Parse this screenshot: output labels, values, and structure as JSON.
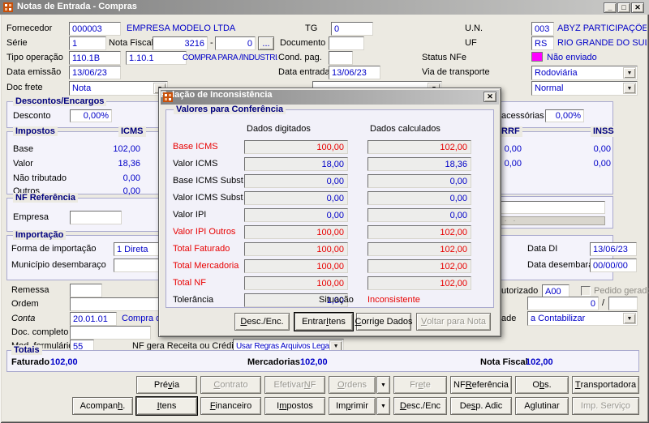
{
  "colors": {
    "value_blue": "#0000C8",
    "alert_red": "#E80000",
    "nfe_status_magenta": "#FF00FF",
    "group_caption_navy": "#00007E"
  },
  "icons": {
    "minimize": "_",
    "maximize": "□",
    "close": "✕",
    "browse": "...",
    "dropdown": "▼",
    "dots": "· · · · · · · · · · · · · · · · · · · ·"
  },
  "window": {
    "title": "Notas de Entrada - Compras"
  },
  "top": {
    "fornecedor_label": "Fornecedor",
    "fornecedor_code": "000003",
    "fornecedor_name": "EMPRESA MODELO LTDA",
    "tg_label": "TG",
    "tg_value": "0",
    "un_label": "U.N.",
    "un_code": "003",
    "un_name": "ABYZ PARTICIPAÇÕES E",
    "serie_label": "Série",
    "serie_value": "1",
    "nota_fiscal_label": "Nota Fiscal",
    "nota_fiscal_value": "3216",
    "dash": "-",
    "nota_fiscal_sub": "0",
    "documento_label": "Documento",
    "documento_value": "",
    "uf_label": "UF",
    "uf_code": "RS",
    "uf_name": "RIO GRANDE DO SUL",
    "tipo_operacao_label": "Tipo operação",
    "tipo_operacao_code1": "110.1B",
    "tipo_operacao_code2": "1.10.1",
    "tipo_operacao_desc": "COMPRA PARA /INDUSTRIALIZACAC",
    "cond_pag_label": "Cond. pag.",
    "cond_pag_value": "",
    "status_nfe_label": "Status NFe",
    "status_nfe_value": "Não enviado",
    "data_emissao_label": "Data emissão",
    "data_emissao_value": "13/06/23",
    "data_entrada_label": "Data entrada",
    "data_entrada_value": "13/06/23",
    "via_transporte_label": "Via de transporte",
    "via_transporte_value": "Rodoviária",
    "doc_frete_label": "Doc frete",
    "doc_frete_value": "Nota",
    "frete_tipo_value": "Normal"
  },
  "descontos": {
    "caption": "Descontos/Encargos",
    "desconto_label": "Desconto",
    "desconto_value": "0,00%",
    "acessorias_label_fragment": "acessórias",
    "acessorias_value": "0,00%"
  },
  "impostos": {
    "caption": "Impostos",
    "col_icms": "ICMS",
    "col_irrf": "IRRF",
    "col_inss": "INSS",
    "row_labels": [
      "Base",
      "Valor",
      "Não tributado",
      "Outros"
    ],
    "icms_values": [
      "102,00",
      "18,36",
      "0,00",
      "0,00"
    ],
    "irrf_values": [
      "0,00",
      "0,00"
    ],
    "inss_values": [
      "0,00",
      "0,00"
    ]
  },
  "nf_ref": {
    "caption": "NF Referência",
    "empresa_label": "Empresa",
    "empresa_value": ""
  },
  "importacao": {
    "caption": "Importação",
    "forma_label": "Forma de importação",
    "forma_value": "1 Direta",
    "municipio_label": "Município desembaraço",
    "municipio_value": "",
    "data_di_label": "Data DI",
    "data_di_value": "13/06/23",
    "data_desembaraco_label": "Data desembaraço",
    "data_desembaraco_value": "00/00/00"
  },
  "misc": {
    "remessa_label": "Remessa",
    "remessa_value": "",
    "autorizado_label_fragment": "utorizado",
    "autorizado_value": "A00",
    "pedido_gerado_label": "Pedido gerado",
    "ordem_label": "Ordem",
    "ordem_value": "",
    "ordem_num_value": "0",
    "slash": "/",
    "ordem_num2_value": "",
    "conta_label": "Conta",
    "conta_value": "20.01.01",
    "conta_desc": "Compra de M",
    "contab_label_fragment": "ade",
    "contab_value": "a Contabilizar",
    "doc_completo_label": "Doc. completo",
    "doc_completo_value": "",
    "mod_formulario_label": "Mod. formulário",
    "mod_formulario_value": "55",
    "nf_gera_label": "NF gera Receita ou Crédito",
    "nf_gera_value": "Usar Regras Arquivos Legais"
  },
  "totais": {
    "caption": "Totais",
    "faturado_label": "Faturado",
    "faturado_value": "102,00",
    "mercadorias_label": "Mercadorias",
    "mercadorias_value": "102,00",
    "nota_fiscal_label": "Nota Fiscal",
    "nota_fiscal_value": "102,00"
  },
  "actions_row1": [
    {
      "label": "Prévia",
      "mnemonic": "v"
    },
    {
      "label": "Contrato",
      "mnemonic": "C",
      "disabled": true
    },
    {
      "label": "Efetivar NF",
      "mnemonic": "N",
      "disabled": true
    },
    {
      "label": "Ordens",
      "mnemonic": "O",
      "disabled": true
    },
    {
      "label": "Frete",
      "mnemonic": "e",
      "disabled": true
    },
    {
      "label": "NF Referência",
      "mnemonic": "R"
    },
    {
      "label": "Obs.",
      "mnemonic": "b"
    },
    {
      "label": "Transportadora",
      "mnemonic": "T"
    }
  ],
  "actions_row2": [
    {
      "label": "Acompanh.",
      "mnemonic": "h"
    },
    {
      "label": "Itens",
      "mnemonic": "I",
      "focused": true
    },
    {
      "label": "Financeiro",
      "mnemonic": "F"
    },
    {
      "label": "Impostos",
      "mnemonic": "m"
    },
    {
      "label": "Imprimir",
      "mnemonic": "p"
    },
    {
      "label": "Desc./Enc",
      "mnemonic": "D"
    },
    {
      "label": "Desp. Adic",
      "mnemonic": "s"
    },
    {
      "label": "Aglutinar",
      "mnemonic": "g"
    },
    {
      "label": "Imp. Serviço",
      "disabled": true
    }
  ],
  "dialog": {
    "title": "Relação de Inconsistência",
    "group_caption": "Valores para Conferência",
    "col_digitados": "Dados digitados",
    "col_calculados": "Dados calculados",
    "rows": [
      {
        "label": "Base ICMS",
        "digitado": "100,00",
        "calculado": "102,00",
        "alert": true
      },
      {
        "label": "Valor ICMS",
        "digitado": "18,00",
        "calculado": "18,36"
      },
      {
        "label": "Base ICMS Subst",
        "digitado": "0,00",
        "calculado": "0,00"
      },
      {
        "label": "Valor ICMS Subst",
        "digitado": "0,00",
        "calculado": "0,00"
      },
      {
        "label": "Valor IPI",
        "digitado": "0,00",
        "calculado": "0,00"
      },
      {
        "label": "Valor IPI Outros",
        "digitado": "100,00",
        "calculado": "102,00",
        "alert": true
      },
      {
        "label": "Total Faturado",
        "digitado": "100,00",
        "calculado": "102,00",
        "alert": true
      },
      {
        "label": "Total Mercadoria",
        "digitado": "100,00",
        "calculado": "102,00",
        "alert": true
      },
      {
        "label": "Total NF",
        "digitado": "100,00",
        "calculado": "102,00",
        "alert": true
      }
    ],
    "tolerancia_label": "Tolerância",
    "tolerancia_value": "1,00",
    "situacao_label": "Situação",
    "situacao_value": "Inconsistente",
    "buttons": [
      {
        "label": "Desc./Enc.",
        "mnemonic": "D"
      },
      {
        "label": "Entrar Itens",
        "mnemonic": "I",
        "default": true
      },
      {
        "label": "Corrige Dados",
        "mnemonic": "C"
      },
      {
        "label": "Voltar para Nota",
        "mnemonic": "V",
        "disabled": true
      }
    ]
  }
}
